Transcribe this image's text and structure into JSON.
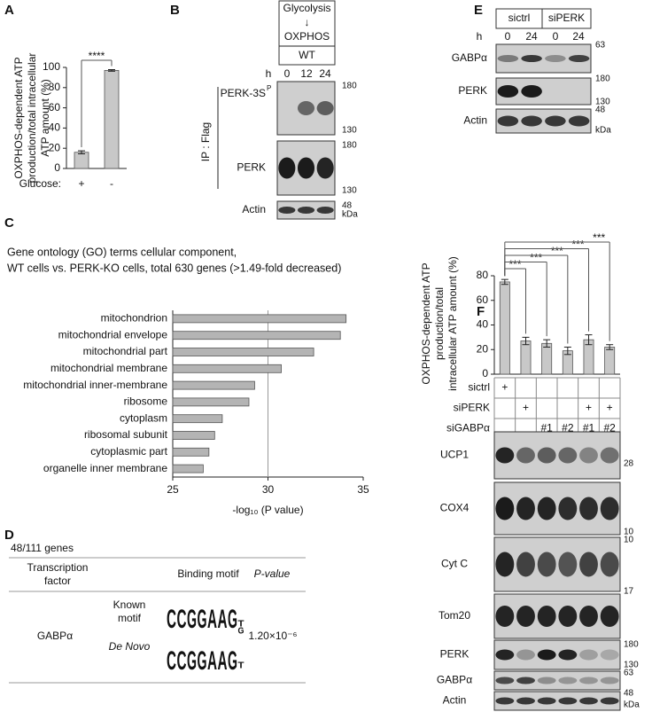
{
  "figure": {
    "panel_labels": [
      "A",
      "B",
      "C",
      "D",
      "E",
      "F"
    ],
    "B": {
      "header": [
        "Glycolysis",
        "↓",
        "OXPHOS"
      ],
      "genotype": "WT",
      "h_label": "h",
      "lanes": [
        "0",
        "12",
        "24"
      ],
      "ip_label": "IP : Flag",
      "blots": [
        {
          "label": "PERK-3S",
          "sup": "P",
          "markers": [
            "180",
            "130"
          ]
        },
        {
          "label": "PERK",
          "markers": [
            "180",
            "130"
          ]
        },
        {
          "label": "Actin",
          "markers": [
            "48",
            "kDa"
          ]
        }
      ]
    },
    "D": {
      "count": "48/111 genes",
      "headers": [
        "Transcription factor",
        "Binding motif",
        "P-value"
      ],
      "factor": "GABPα",
      "motifs": [
        {
          "name": "Known motif",
          "letters": [
            "C",
            "C",
            "G",
            "G",
            "A",
            "A",
            "G",
            "T",
            "G"
          ]
        },
        {
          "name": "De Novo",
          "letters": [
            "C",
            "C",
            "G",
            "G",
            "A",
            "A",
            "G",
            "T"
          ]
        }
      ],
      "p_value": "1.20×10⁻⁶"
    },
    "E": {
      "h_label": "h",
      "groups": [
        "sictrl",
        "siPERK"
      ],
      "lanes": [
        "0",
        "24",
        "0",
        "24"
      ],
      "blots": [
        {
          "label": "GABPα",
          "markers": [
            "63"
          ]
        },
        {
          "label": "PERK",
          "markers": [
            "180",
            "130"
          ]
        },
        {
          "label": "Actin",
          "markers": [
            "48",
            "kDa"
          ]
        }
      ]
    },
    "F_table": {
      "row_labels": [
        "sictrl",
        "siPERK",
        "siGABPα"
      ],
      "rows": [
        [
          "+",
          null,
          null,
          null,
          null,
          null
        ],
        [
          null,
          "+",
          null,
          null,
          "+",
          "+"
        ],
        [
          null,
          null,
          "#1",
          "#2",
          "#1",
          "#2"
        ]
      ]
    },
    "F_blots": [
      {
        "label": "UCP1",
        "markers": [
          "28"
        ]
      },
      {
        "label": "COX4",
        "markers": [
          "10"
        ]
      },
      {
        "label": "Cyt C",
        "markers": [
          "10"
        ]
      },
      {
        "label": "Tom20",
        "markers": [
          "17"
        ]
      },
      {
        "label": "PERK",
        "markers": [
          "180",
          "130"
        ]
      },
      {
        "label": "GABPα",
        "markers": [
          "63"
        ]
      },
      {
        "label": "Actin",
        "markers": [
          "48",
          "kDa"
        ]
      }
    ]
  },
  "chart_data": [
    {
      "type": "bar",
      "ylabel": [
        "OXPHOS-dependent ATP",
        "production/total intracellular",
        "ATP amount (%)"
      ],
      "xlabel": "Glucose:",
      "categories": [
        "+",
        "-"
      ],
      "values": [
        16,
        97
      ],
      "errors": [
        1.5,
        0.8
      ],
      "color": "#c8c8c8",
      "ylim": [
        0,
        100
      ],
      "yticks": [
        0,
        20,
        40,
        60,
        80,
        100
      ],
      "significance": [
        "****"
      ]
    },
    {
      "type": "barh",
      "title": [
        "Gene ontology (GO) terms cellular component,",
        "WT cells vs. PERK-KO cells, total 630 genes (>1.49-fold decreased)"
      ],
      "categories": [
        "mitochondrion",
        "mitochondrial envelope",
        "mitochondrial part",
        "mitochondrial membrane",
        "mitochondrial inner-membrane",
        "ribosome",
        "cytoplasm",
        "ribosomal subunit",
        "cytoplasmic part",
        "organelle inner membrane"
      ],
      "values": [
        34.1,
        33.8,
        32.4,
        30.7,
        29.3,
        29.0,
        27.6,
        27.2,
        26.9,
        26.6
      ],
      "color": "#b4b4b4",
      "xlim": [
        25,
        35
      ],
      "xticks": [
        25,
        30,
        35
      ],
      "refline": 30,
      "xlabel": "-log₁₀ (P value)"
    },
    {
      "type": "bar",
      "ylabel": [
        "OXPHOS-dependent ATP",
        "production/total",
        "intracellular ATP amount (%)"
      ],
      "values": [
        75,
        27,
        25,
        19,
        28,
        22
      ],
      "errors": [
        2,
        3,
        3,
        3,
        4,
        2
      ],
      "color": "#c8c8c8",
      "ylim": [
        0,
        80
      ],
      "yticks": [
        0,
        20,
        40,
        60,
        80
      ],
      "significance": [
        "***",
        "***",
        "***",
        "***",
        "***"
      ]
    }
  ]
}
